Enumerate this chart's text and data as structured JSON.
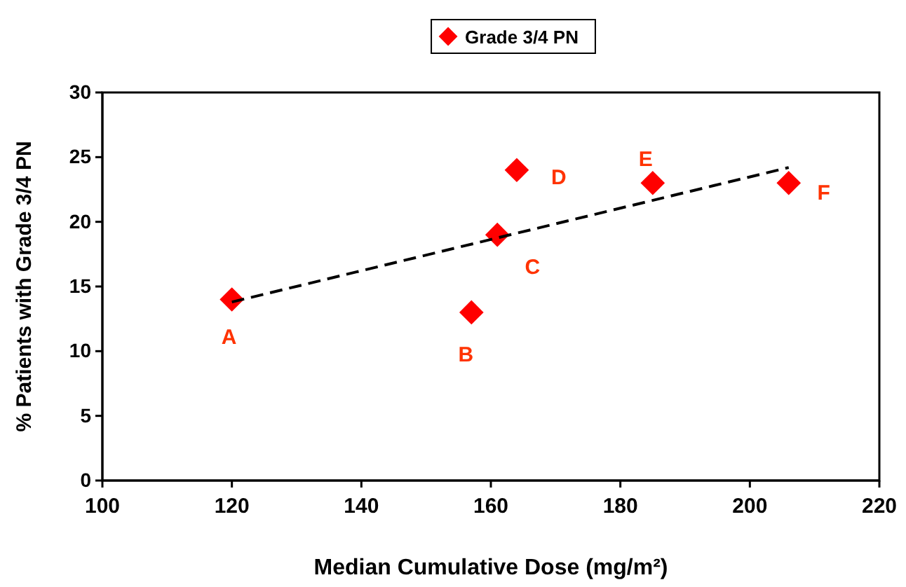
{
  "chart_data": {
    "type": "scatter",
    "xlabel": "Median Cumulative Dose (mg/m²)",
    "ylabel": "% Patients with Grade 3/4 PN",
    "xlim": [
      100,
      220
    ],
    "xticks": [
      100,
      120,
      140,
      160,
      180,
      200,
      220
    ],
    "ylim": [
      0,
      30
    ],
    "yticks": [
      0,
      5,
      10,
      15,
      20,
      25,
      30
    ],
    "grid": false,
    "legend": "top",
    "series": [
      {
        "name": "Grade 3/4 PN",
        "color": "#ff0000",
        "marker": "diamond",
        "x": [
          120,
          157,
          161,
          164,
          185,
          206
        ],
        "values": [
          14,
          13,
          19,
          24,
          23,
          23
        ]
      },
      {
        "type": "line",
        "color": "#000000",
        "line_style": "dashed",
        "marker": "none",
        "x": [
          120,
          206
        ],
        "values": [
          13.8,
          24.2
        ]
      }
    ],
    "annotations": [
      {
        "text": "A",
        "x": 120,
        "y": 14
      },
      {
        "text": "B",
        "x": 157,
        "y": 13
      },
      {
        "text": "C",
        "x": 161,
        "y": 19
      },
      {
        "text": "D",
        "x": 164,
        "y": 24
      },
      {
        "text": "E",
        "x": 185,
        "y": 23
      },
      {
        "text": "F",
        "x": 206,
        "y": 23
      }
    ]
  }
}
